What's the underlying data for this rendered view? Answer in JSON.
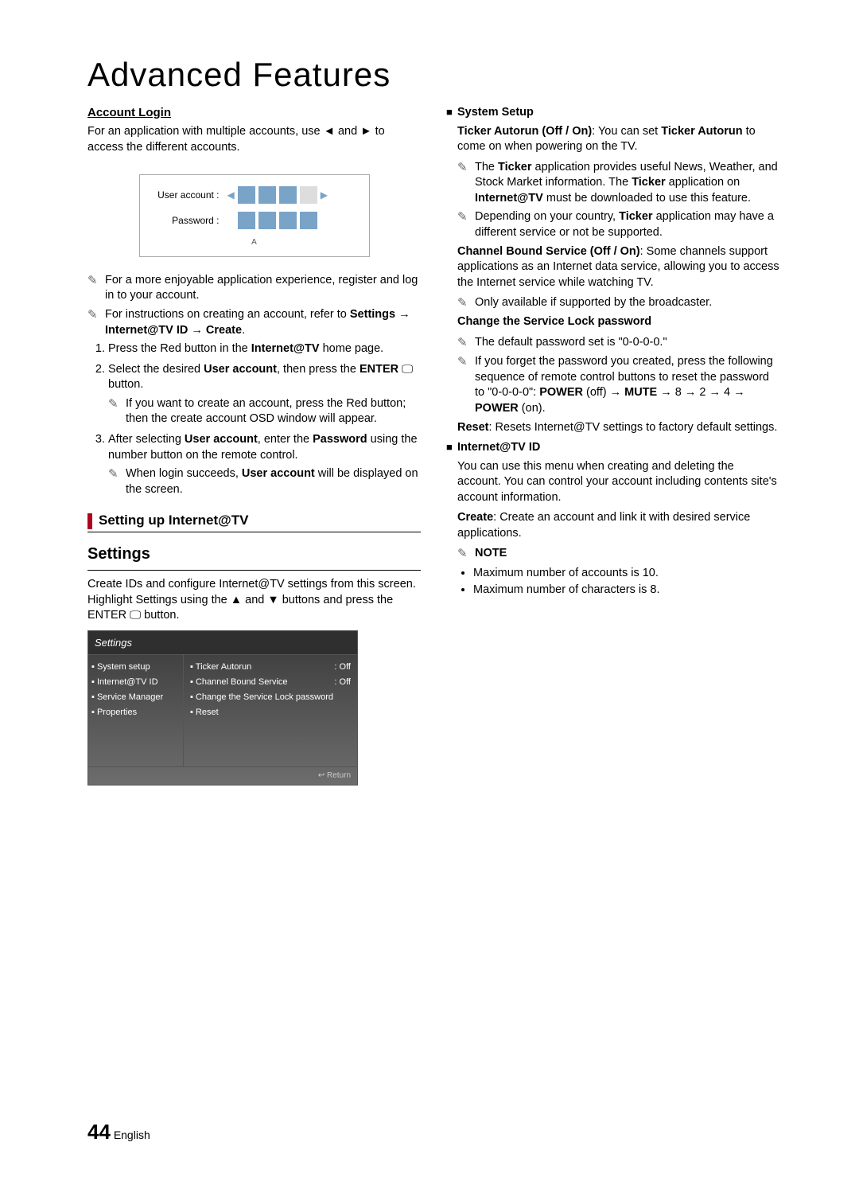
{
  "title": "Advanced Features",
  "left": {
    "account_login_h": "Account Login",
    "account_login_p": "For an application with multiple accounts, use ◄ and ► to access the different accounts.",
    "login_user_label": "User account :",
    "login_pwd_label": "Password :",
    "note1": "For a more enjoyable application experience, register and log in to your account.",
    "note2a": "For instructions on creating an account, refer to ",
    "note2b": "Settings → Internet@TV ID → Create",
    "step1a": "Press the Red button in the ",
    "step1b": "Internet@TV",
    "step1c": " home page.",
    "step2a": "Select the desired ",
    "step2b": "User account",
    "step2c": ", then press the ",
    "step2d": "ENTER",
    "step2e": " button.",
    "step2_sub": "If you want to create an account, press the Red button; then the create account OSD window will appear.",
    "step3a": "After selecting ",
    "step3b": "User account",
    "step3c": ", enter the ",
    "step3d": "Password",
    "step3e": " using the number button on the remote control.",
    "step3_sub_a": "When login succeeds, ",
    "step3_sub_b": "User account",
    "step3_sub_c": " will be displayed on the screen.",
    "bar_heading": "Setting up Internet@TV",
    "settings_h": "Settings",
    "settings_p": "Create IDs and configure Internet@TV settings from this screen. Highlight Settings using the ▲ and ▼ buttons and press the ENTER 🖵 button.",
    "shot": {
      "title": "Settings",
      "left_items": [
        "▪ System setup",
        "▪ Internet@TV ID",
        "▪ Service Manager",
        "▪ Properties"
      ],
      "right_items": [
        {
          "label": "▪ Ticker Autorun",
          "val": ": Off"
        },
        {
          "label": "▪ Channel Bound Service",
          "val": ": Off"
        },
        {
          "label": "▪ Change the Service Lock password",
          "val": ""
        },
        {
          "label": "▪ Reset",
          "val": ""
        }
      ],
      "return": "↩ Return"
    }
  },
  "right": {
    "sys_setup": "System Setup",
    "ticker_a": "Ticker Autorun (Off / On)",
    "ticker_b": ": You can set ",
    "ticker_c": "Ticker Autorun",
    "ticker_d": " to come on when powering on the TV.",
    "ticker_n1a": "The ",
    "ticker_n1b": "Ticker",
    "ticker_n1c": " application provides useful News, Weather, and Stock Market information. The ",
    "ticker_n1d": "Ticker",
    "ticker_n1e": " application on ",
    "ticker_n1f": "Internet@TV",
    "ticker_n1g": " must be downloaded to use this feature.",
    "ticker_n2a": "Depending on your country, ",
    "ticker_n2b": "Ticker",
    "ticker_n2c": " application may have a different service or not be supported.",
    "cbs_a": "Channel Bound Service (Off / On)",
    "cbs_b": ": Some channels support applications as an Internet data service, allowing you to access the Internet service while watching TV.",
    "cbs_n1": "Only available if supported by the broadcaster.",
    "change_pwd_h": "Change the Service Lock password",
    "pwd_n1": "The default password set is \"0-0-0-0.\"",
    "pwd_n2a": "If you forget the password you created, press the following sequence of remote control buttons to reset the password to \"0-0-0-0\": ",
    "pwd_n2b": "POWER",
    "pwd_n2c": " (off) → ",
    "pwd_n2d": "MUTE",
    "pwd_n2e": " → 8 → 2 → 4 → ",
    "pwd_n2f": "POWER",
    "pwd_n2g": " (on).",
    "reset_a": "Reset",
    "reset_b": ": Resets Internet@TV settings to factory default settings.",
    "itvid_h": "Internet@TV ID",
    "itvid_p": "You can use this menu when creating and deleting the account. You can control your account including contents site's account information.",
    "create_a": "Create",
    "create_b": ": Create an account and link it with desired service applications.",
    "note_h": "NOTE",
    "dot1": "Maximum number of accounts is 10.",
    "dot2": "Maximum number of characters is 8."
  },
  "footer": {
    "page": "44",
    "lang": "English"
  }
}
